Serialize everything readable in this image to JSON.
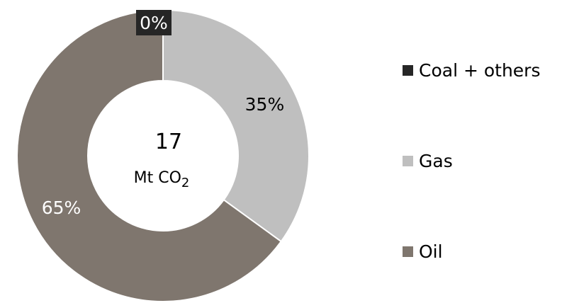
{
  "chart_data": {
    "type": "pie",
    "center_label": {
      "value": "17",
      "unit_text": "Mt CO",
      "unit_subscript": "2"
    },
    "slices": [
      {
        "name": "Coal + others",
        "value": 0,
        "label": "0%",
        "color": "#262626"
      },
      {
        "name": "Gas",
        "value": 35,
        "label": "35%",
        "color": "#bfbfbf"
      },
      {
        "name": "Oil",
        "value": 65,
        "label": "65%",
        "color": "#7f766e"
      }
    ],
    "legend": {
      "placement": "right",
      "items": [
        "Coal + others",
        "Gas",
        "Oil"
      ]
    }
  }
}
